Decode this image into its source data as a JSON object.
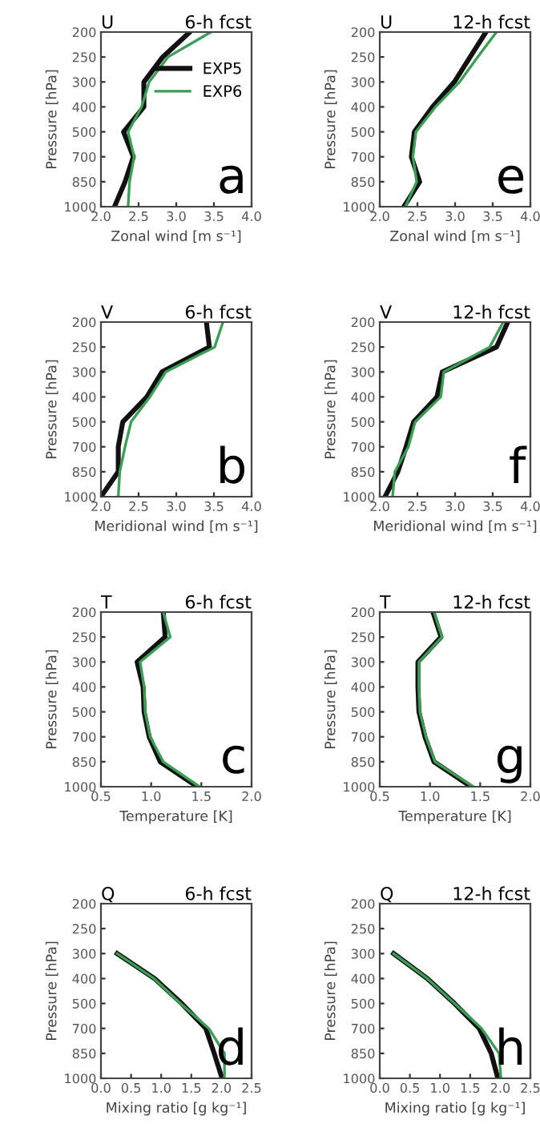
{
  "chart_data": [
    {
      "type": "line",
      "orientation": "horizontal",
      "title": "U",
      "subtitle": "6-h fcst",
      "xlabel": "Zonal wind [m s⁻¹]",
      "ylabel": "Pressure [hPa]",
      "annotations": [
        "a"
      ],
      "legend": "right",
      "categories": [
        "200",
        "250",
        "300",
        "400",
        "500",
        "700",
        "850",
        "1000"
      ],
      "xlim": [
        2,
        4
      ],
      "xticks": [
        {
          "value": 2,
          "label": "2.0"
        },
        {
          "value": 2.5,
          "label": "2.5"
        },
        {
          "value": 3,
          "label": "3.0"
        },
        {
          "value": 3.5,
          "label": "3.5"
        },
        {
          "value": 4,
          "label": "4.0"
        }
      ],
      "series": [
        {
          "name": "EXP5",
          "color": "#111111",
          "values": [
            3.18,
            2.82,
            2.57,
            2.57,
            2.3,
            2.43,
            2.32,
            2.18
          ]
        },
        {
          "name": "EXP6",
          "color": "#3a9e55",
          "values": [
            3.46,
            2.89,
            2.64,
            2.54,
            2.36,
            2.44,
            2.38,
            2.36
          ]
        }
      ]
    },
    {
      "type": "line",
      "orientation": "horizontal",
      "title": "U",
      "subtitle": "12-h fcst",
      "xlabel": "Zonal wind [m s⁻¹]",
      "ylabel": "Pressure [hPa]",
      "annotations": [
        "e"
      ],
      "categories": [
        "200",
        "250",
        "300",
        "400",
        "500",
        "700",
        "850",
        "1000"
      ],
      "xlim": [
        2,
        4
      ],
      "xticks": [
        {
          "value": 2,
          "label": "2.0"
        },
        {
          "value": 2.5,
          "label": "2.5"
        },
        {
          "value": 3,
          "label": "3.0"
        },
        {
          "value": 3.5,
          "label": "3.5"
        },
        {
          "value": 4,
          "label": "4.0"
        }
      ],
      "series": [
        {
          "color": "#111111",
          "values": [
            3.41,
            3.2,
            2.99,
            2.7,
            2.46,
            2.42,
            2.53,
            2.32
          ]
        },
        {
          "color": "#3a9e55",
          "values": [
            3.55,
            3.3,
            3.06,
            2.74,
            2.48,
            2.44,
            2.49,
            2.34
          ]
        }
      ]
    },
    {
      "type": "line",
      "orientation": "horizontal",
      "title": "V",
      "subtitle": "6-h fcst",
      "xlabel": "Meridional wind [m s⁻¹]",
      "ylabel": "Pressure [hPa]",
      "annotations": [
        "b"
      ],
      "categories": [
        "200",
        "250",
        "300",
        "400",
        "500",
        "700",
        "850",
        "1000"
      ],
      "xlim": [
        2,
        4
      ],
      "xticks": [
        {
          "value": 2,
          "label": "2.0"
        },
        {
          "value": 2.5,
          "label": "2.5"
        },
        {
          "value": 3,
          "label": "3.0"
        },
        {
          "value": 3.5,
          "label": "3.5"
        },
        {
          "value": 4,
          "label": "4.0"
        }
      ],
      "series": [
        {
          "color": "#111111",
          "values": [
            3.4,
            3.44,
            2.81,
            2.61,
            2.29,
            2.23,
            2.23,
            2.0
          ]
        },
        {
          "color": "#3a9e55",
          "values": [
            3.62,
            3.51,
            2.86,
            2.65,
            2.4,
            2.32,
            2.25,
            2.23
          ]
        }
      ]
    },
    {
      "type": "line",
      "orientation": "horizontal",
      "title": "V",
      "subtitle": "12-h fcst",
      "xlabel": "Meridional wind [m s⁻¹]",
      "ylabel": "Pressure [hPa]",
      "annotations": [
        "f"
      ],
      "categories": [
        "200",
        "250",
        "300",
        "400",
        "500",
        "700",
        "850",
        "1000"
      ],
      "xlim": [
        2,
        4
      ],
      "xticks": [
        {
          "value": 2,
          "label": "2.0"
        },
        {
          "value": 2.5,
          "label": "2.5"
        },
        {
          "value": 3,
          "label": "3.0"
        },
        {
          "value": 3.5,
          "label": "3.5"
        },
        {
          "value": 4,
          "label": "4.0"
        }
      ],
      "series": [
        {
          "color": "#111111",
          "values": [
            3.7,
            3.55,
            2.83,
            2.76,
            2.45,
            2.35,
            2.24,
            2.07
          ]
        },
        {
          "color": "#3a9e55",
          "values": [
            3.64,
            3.46,
            2.85,
            2.81,
            2.47,
            2.38,
            2.2,
            2.17
          ]
        }
      ]
    },
    {
      "type": "line",
      "orientation": "horizontal",
      "title": "T",
      "subtitle": "6-h fcst",
      "xlabel": "Temperature [K]",
      "ylabel": "Pressure [hPa]",
      "annotations": [
        "c"
      ],
      "categories": [
        "200",
        "250",
        "300",
        "400",
        "500",
        "700",
        "850",
        "1000"
      ],
      "xlim": [
        0.5,
        2
      ],
      "xticks": [
        0.5,
        {
          "value": 1,
          "label": "1.0"
        },
        1.5,
        {
          "value": 2,
          "label": "2.0"
        }
      ],
      "series": [
        {
          "color": "#111111",
          "values": [
            1.12,
            1.14,
            0.86,
            0.92,
            0.93,
            0.98,
            1.09,
            1.46
          ]
        },
        {
          "color": "#3a9e55",
          "values": [
            1.12,
            1.19,
            0.89,
            0.93,
            0.94,
            0.99,
            1.12,
            1.48
          ]
        }
      ]
    },
    {
      "type": "line",
      "orientation": "horizontal",
      "title": "T",
      "subtitle": "12-h fcst",
      "xlabel": "Temperature [K]",
      "ylabel": "Pressure [hPa]",
      "annotations": [
        "g"
      ],
      "categories": [
        "200",
        "250",
        "300",
        "400",
        "500",
        "700",
        "850",
        "1000"
      ],
      "xlim": [
        0.5,
        2
      ],
      "xticks": [
        0.5,
        {
          "value": 1,
          "label": "1.0"
        },
        1.5,
        {
          "value": 2,
          "label": "2.0"
        }
      ],
      "series": [
        {
          "color": "#111111",
          "values": [
            1.03,
            1.11,
            0.88,
            0.88,
            0.89,
            0.95,
            1.04,
            1.41
          ]
        },
        {
          "color": "#3a9e55",
          "values": [
            1.04,
            1.12,
            0.89,
            0.89,
            0.9,
            0.96,
            1.05,
            1.43
          ]
        }
      ]
    },
    {
      "type": "line",
      "orientation": "horizontal",
      "title": "Q",
      "subtitle": "6-h fcst",
      "xlabel": "Mixing ratio [g kg⁻¹]",
      "ylabel": "Pressure [hPa]",
      "annotations": [
        "d"
      ],
      "categories": [
        "200",
        "250",
        "300",
        "400",
        "500",
        "700",
        "850",
        "1000"
      ],
      "xlim": [
        0,
        2.5
      ],
      "xticks": [
        {
          "value": 0,
          "label": "0.0"
        },
        0.5,
        {
          "value": 1,
          "label": "1.0"
        },
        1.5,
        {
          "value": 2,
          "label": "2.0"
        },
        2.5
      ],
      "series": [
        {
          "color": "#111111",
          "values": [
            null,
            null,
            0.27,
            0.89,
            1.34,
            1.74,
            1.88,
            2.01
          ]
        },
        {
          "color": "#3a9e55",
          "values": [
            null,
            null,
            0.27,
            0.88,
            1.32,
            1.79,
            2.05,
            2.05
          ]
        }
      ]
    },
    {
      "type": "line",
      "orientation": "horizontal",
      "title": "Q",
      "subtitle": "12-h fcst",
      "xlabel": "Mixing ratio [g kg⁻¹]",
      "ylabel": "Pressure [hPa]",
      "annotations": [
        "h"
      ],
      "categories": [
        "200",
        "250",
        "300",
        "400",
        "500",
        "700",
        "850",
        "1000"
      ],
      "xlim": [
        0,
        2.5
      ],
      "xticks": [
        {
          "value": 0,
          "label": "0.0"
        },
        0.5,
        {
          "value": 1,
          "label": "1.0"
        },
        1.5,
        {
          "value": 2,
          "label": "2.0"
        },
        2.5
      ],
      "series": [
        {
          "color": "#111111",
          "values": [
            null,
            null,
            0.23,
            0.79,
            1.24,
            1.65,
            1.85,
            1.96
          ]
        },
        {
          "color": "#3a9e55",
          "values": [
            null,
            null,
            0.23,
            0.79,
            1.24,
            1.69,
            1.98,
            2.01
          ]
        }
      ]
    }
  ]
}
